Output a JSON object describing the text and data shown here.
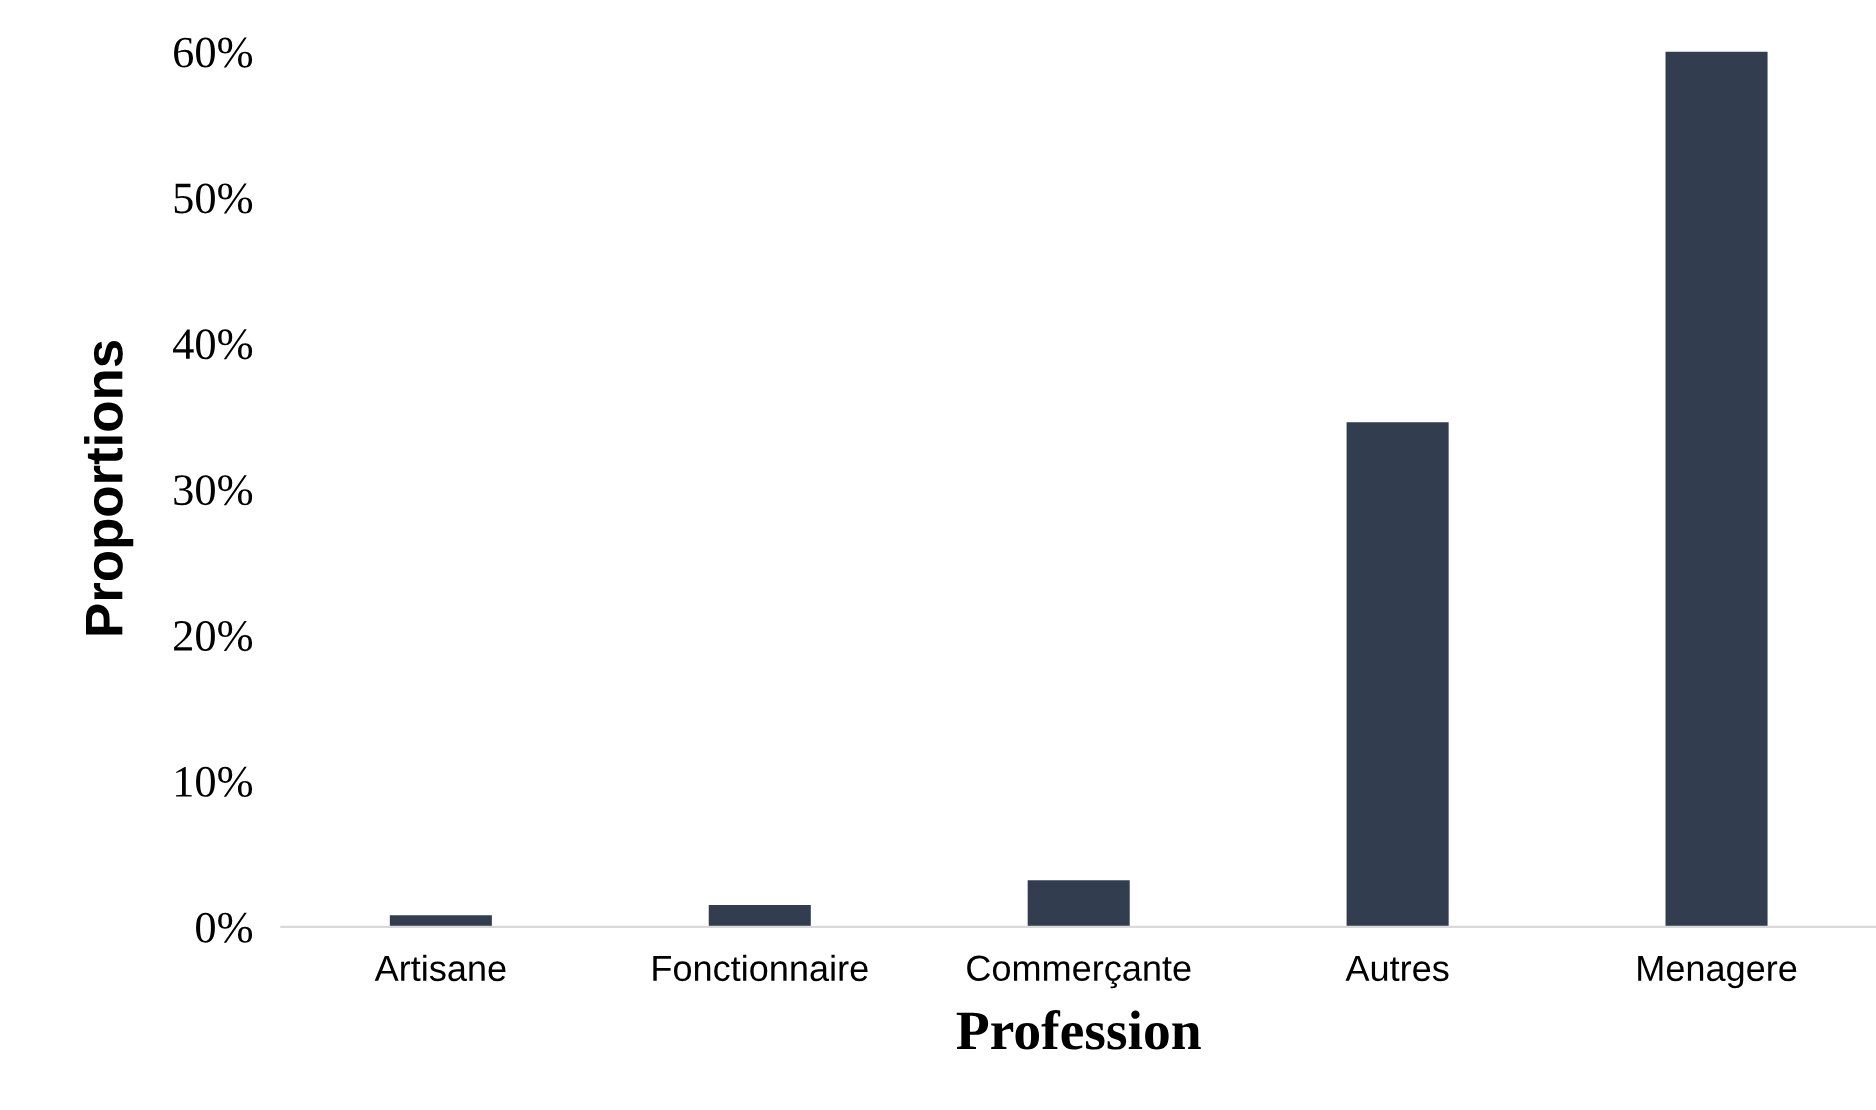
{
  "chart_data": {
    "type": "bar",
    "xlabel": "Profession",
    "ylabel": "Proportions",
    "categories": [
      "Artisane",
      "Fonctionnaire",
      "Commerçante",
      "Autres",
      "Menagere"
    ],
    "values": [
      0.8,
      1.5,
      3.2,
      34.6,
      60
    ],
    "color": "#323d4f",
    "ylim": [
      0,
      60
    ],
    "yticks": [
      {
        "value": 0,
        "label": "0%"
      },
      {
        "value": 10,
        "label": "10%"
      },
      {
        "value": 20,
        "label": "20%"
      },
      {
        "value": 30,
        "label": "30%"
      },
      {
        "value": 40,
        "label": "40%"
      },
      {
        "value": 50,
        "label": "50%"
      },
      {
        "value": 60,
        "label": "60%"
      }
    ],
    "grid": false
  }
}
